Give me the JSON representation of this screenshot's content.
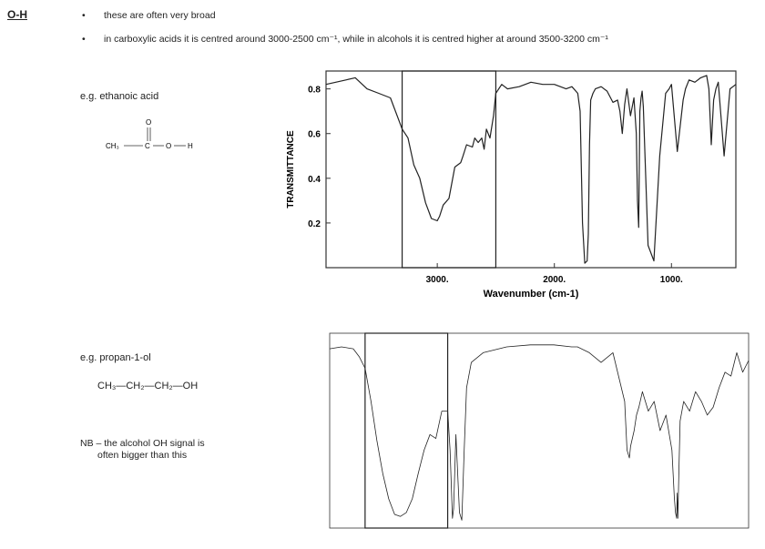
{
  "section": {
    "heading": "O-H",
    "bullets": [
      "these are often very broad",
      "in carboxylic acids it is centred around 3000-2500 cm⁻¹, while in alcohols it is centred higher at around 3500-3200 cm⁻¹"
    ],
    "bullet_symbol": "•"
  },
  "example1": {
    "label": "e.g.   ethanoic acid",
    "structure": {
      "o": "O",
      "left": "CH₃",
      "c": "C",
      "o2": "O",
      "h": "H"
    }
  },
  "example2": {
    "label": "e.g.   propan-1-ol",
    "formula": "CH₃—CH₂—CH₂—OH",
    "note": [
      "NB – the alcohol OH signal is",
      "often bigger than this"
    ]
  },
  "chart_data": [
    {
      "type": "line",
      "title": "",
      "xlabel": "Wavenumber (cm-1)",
      "ylabel": "TRANSMITTANCE",
      "xlim": [
        3950,
        450
      ],
      "ylim": [
        0.0,
        0.88
      ],
      "xticks": [
        3000,
        2000,
        1000
      ],
      "xtick_labels": [
        "3000.",
        "2000.",
        "1000."
      ],
      "yticks": [
        0.2,
        0.4,
        0.6,
        0.8
      ],
      "ytick_labels": [
        "0.2",
        "0.4",
        "0.6",
        "0.8"
      ],
      "highlight_box_x": [
        3300,
        2500
      ],
      "series": [
        {
          "x": [
            3950,
            3780,
            3700,
            3600,
            3500,
            3400,
            3300,
            3250,
            3200,
            3150,
            3100,
            3050,
            3000,
            2980,
            2950,
            2900,
            2850,
            2800,
            2780,
            2750,
            2700,
            2680,
            2650,
            2620,
            2600,
            2580,
            2550,
            2520,
            2500,
            2450,
            2400,
            2300,
            2200,
            2100,
            2000,
            1900,
            1850,
            1800,
            1780,
            1760,
            1740,
            1720,
            1710,
            1700,
            1690,
            1670,
            1650,
            1600,
            1550,
            1500,
            1460,
            1440,
            1420,
            1400,
            1380,
            1350,
            1320,
            1300,
            1290,
            1280,
            1270,
            1260,
            1250,
            1240,
            1200,
            1150,
            1100,
            1050,
            1020,
            1000,
            950,
            900,
            880,
            850,
            800,
            750,
            700,
            680,
            660,
            640,
            620,
            600,
            550,
            500,
            450
          ],
          "y": [
            0.82,
            0.84,
            0.85,
            0.8,
            0.78,
            0.76,
            0.62,
            0.58,
            0.46,
            0.4,
            0.29,
            0.22,
            0.21,
            0.23,
            0.28,
            0.31,
            0.45,
            0.47,
            0.5,
            0.55,
            0.54,
            0.58,
            0.56,
            0.58,
            0.53,
            0.62,
            0.58,
            0.68,
            0.78,
            0.82,
            0.8,
            0.81,
            0.83,
            0.82,
            0.82,
            0.8,
            0.81,
            0.78,
            0.7,
            0.2,
            0.02,
            0.03,
            0.15,
            0.55,
            0.75,
            0.78,
            0.8,
            0.81,
            0.79,
            0.74,
            0.75,
            0.7,
            0.6,
            0.73,
            0.8,
            0.68,
            0.76,
            0.6,
            0.3,
            0.18,
            0.7,
            0.76,
            0.79,
            0.72,
            0.1,
            0.03,
            0.5,
            0.78,
            0.8,
            0.82,
            0.52,
            0.75,
            0.8,
            0.84,
            0.83,
            0.85,
            0.86,
            0.8,
            0.55,
            0.75,
            0.8,
            0.83,
            0.5,
            0.8,
            0.82
          ]
        }
      ]
    },
    {
      "type": "line",
      "title": "",
      "xlabel": "",
      "ylabel": "",
      "xlim": [
        4000,
        450
      ],
      "ylim": [
        0,
        100
      ],
      "highlight_box_x": [
        3700,
        3000
      ],
      "series": [
        {
          "x": [
            4000,
            3900,
            3800,
            3750,
            3700,
            3650,
            3600,
            3550,
            3500,
            3450,
            3400,
            3350,
            3300,
            3250,
            3200,
            3150,
            3100,
            3050,
            3000,
            2980,
            2960,
            2950,
            2930,
            2900,
            2880,
            2860,
            2840,
            2800,
            2700,
            2500,
            2300,
            2100,
            1950,
            1900,
            1800,
            1700,
            1600,
            1500,
            1480,
            1460,
            1450,
            1420,
            1400,
            1380,
            1350,
            1300,
            1250,
            1200,
            1150,
            1100,
            1080,
            1070,
            1060,
            1055,
            1050,
            1040,
            1030,
            1000,
            950,
            900,
            850,
            800,
            750,
            700,
            650,
            600,
            550,
            500,
            450
          ],
          "y": [
            92,
            93,
            92,
            88,
            82,
            65,
            45,
            28,
            15,
            7,
            6,
            8,
            15,
            28,
            40,
            48,
            46,
            60,
            60,
            40,
            5,
            10,
            48,
            8,
            4,
            40,
            72,
            85,
            90,
            93,
            94,
            94,
            93,
            93,
            90,
            85,
            90,
            65,
            40,
            36,
            42,
            50,
            58,
            62,
            70,
            60,
            65,
            50,
            58,
            40,
            16,
            8,
            5,
            18,
            5,
            30,
            55,
            65,
            60,
            70,
            65,
            58,
            62,
            72,
            80,
            78,
            90,
            80,
            86
          ]
        }
      ]
    }
  ]
}
